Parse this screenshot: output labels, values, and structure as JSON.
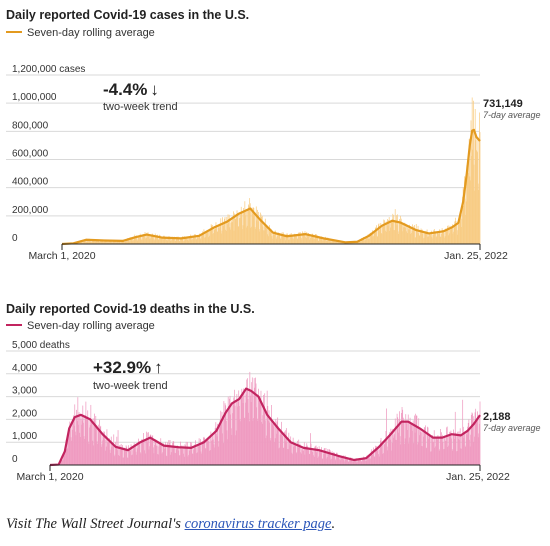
{
  "colors": {
    "cases_line": "#e39a1f",
    "cases_bar": "#f8cd86",
    "deaths_line": "#c2245f",
    "deaths_bar": "#ef9cc1",
    "grid": "#d9d9d9",
    "text": "#222222",
    "muted": "#555555"
  },
  "chart_data": [
    {
      "type": "area",
      "title": "Daily reported Covid-19 cases in the U.S.",
      "legend": "Seven-day rolling average",
      "legend_placement": "top-left",
      "grid": true,
      "ylim": [
        0,
        1200000
      ],
      "yticks": [
        {
          "value": 0,
          "label": "0"
        },
        {
          "value": 200000,
          "label": "200,000"
        },
        {
          "value": 400000,
          "label": "400,000"
        },
        {
          "value": 600000,
          "label": "600,000"
        },
        {
          "value": 800000,
          "label": "800,000"
        },
        {
          "value": 1000000,
          "label": "1,000,000"
        },
        {
          "value": 1200000,
          "label": "1,200,000 cases"
        }
      ],
      "x_start_label": "March 1, 2020",
      "x_end_label": "Jan. 25, 2022",
      "trend_value": "-4.4%",
      "trend_arrow": "↓",
      "trend_label": "two-week trend",
      "end_value": "731,149",
      "end_label": "7-day average",
      "series": [
        {
          "name": "Seven-day rolling average",
          "x": [
            "2020-03-01",
            "2020-03-20",
            "2020-04-10",
            "2020-05-10",
            "2020-06-10",
            "2020-07-01",
            "2020-07-20",
            "2020-08-15",
            "2020-09-15",
            "2020-10-15",
            "2020-11-10",
            "2020-12-01",
            "2020-12-20",
            "2021-01-08",
            "2021-01-25",
            "2021-02-15",
            "2021-03-10",
            "2021-04-10",
            "2021-05-10",
            "2021-06-15",
            "2021-07-05",
            "2021-07-25",
            "2021-08-15",
            "2021-09-01",
            "2021-09-15",
            "2021-10-10",
            "2021-11-01",
            "2021-11-25",
            "2021-12-10",
            "2021-12-20",
            "2021-12-28",
            "2022-01-03",
            "2022-01-08",
            "2022-01-12",
            "2022-01-15",
            "2022-01-19",
            "2022-01-25"
          ],
          "values": [
            0,
            5000,
            30000,
            25000,
            22000,
            48000,
            67000,
            45000,
            40000,
            58000,
            120000,
            160000,
            215000,
            252000,
            170000,
            80000,
            55000,
            70000,
            40000,
            12000,
            16000,
            60000,
            130000,
            165000,
            152000,
            100000,
            75000,
            90000,
            120000,
            150000,
            300000,
            500000,
            700000,
            805000,
            810000,
            760000,
            731149
          ]
        }
      ]
    },
    {
      "type": "area",
      "title": "Daily reported Covid-19 deaths in the U.S.",
      "legend": "Seven-day rolling average",
      "legend_placement": "top-left",
      "grid": true,
      "ylim": [
        0,
        5000
      ],
      "yticks": [
        {
          "value": 0,
          "label": "0"
        },
        {
          "value": 1000,
          "label": "1,000"
        },
        {
          "value": 2000,
          "label": "2,000"
        },
        {
          "value": 3000,
          "label": "3,000"
        },
        {
          "value": 4000,
          "label": "4,000"
        },
        {
          "value": 5000,
          "label": "5,000 deaths"
        }
      ],
      "x_start_label": "March 1, 2020",
      "x_end_label": "Jan. 25, 2022",
      "trend_value": "+32.9%",
      "trend_arrow": "↑",
      "trend_label": "two-week trend",
      "end_value": "2,188",
      "end_label": "7-day average",
      "series": [
        {
          "name": "Seven-day rolling average",
          "x": [
            "2020-03-01",
            "2020-03-15",
            "2020-03-25",
            "2020-04-01",
            "2020-04-10",
            "2020-04-20",
            "2020-05-05",
            "2020-05-25",
            "2020-06-15",
            "2020-07-05",
            "2020-07-25",
            "2020-08-10",
            "2020-09-01",
            "2020-09-25",
            "2020-10-15",
            "2020-11-05",
            "2020-11-25",
            "2020-12-10",
            "2020-12-20",
            "2021-01-01",
            "2021-01-12",
            "2021-01-20",
            "2021-02-01",
            "2021-02-15",
            "2021-03-05",
            "2021-03-25",
            "2021-04-15",
            "2021-05-10",
            "2021-06-10",
            "2021-07-05",
            "2021-07-25",
            "2021-08-15",
            "2021-09-01",
            "2021-09-20",
            "2021-10-01",
            "2021-10-20",
            "2021-11-10",
            "2021-11-25",
            "2021-12-10",
            "2021-12-25",
            "2022-01-05",
            "2022-01-15",
            "2022-01-25"
          ],
          "values": [
            0,
            20,
            600,
            1600,
            2100,
            2200,
            2000,
            1350,
            800,
            650,
            1000,
            1200,
            850,
            780,
            750,
            1000,
            1500,
            2300,
            2700,
            2900,
            3350,
            3250,
            3000,
            2200,
            1600,
            1000,
            750,
            650,
            400,
            220,
            300,
            800,
            1300,
            1900,
            1900,
            1600,
            1200,
            1200,
            1350,
            1300,
            1500,
            1800,
            2188
          ]
        }
      ]
    }
  ],
  "caption": {
    "prefix": "Visit The Wall Street Journal's ",
    "link_text": "coronavirus tracker page",
    "suffix": "."
  }
}
